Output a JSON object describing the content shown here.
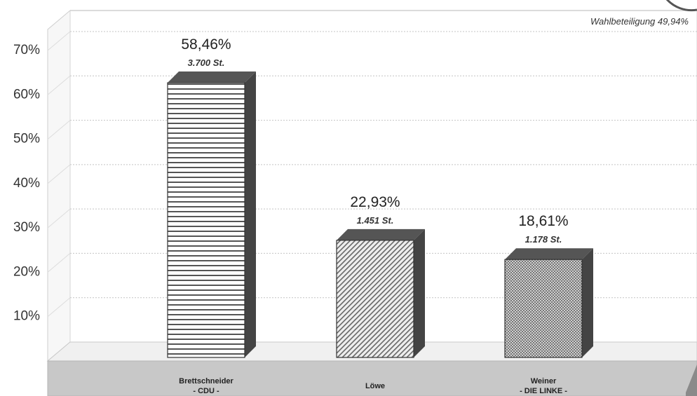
{
  "chart_data": {
    "type": "bar",
    "title": "",
    "annotation": "Wahlbeteiligung 49,94%",
    "y_ticks": [
      "10%",
      "20%",
      "30%",
      "40%",
      "50%",
      "60%",
      "70%"
    ],
    "ylim": [
      0,
      70
    ],
    "grid": true,
    "categories": [
      {
        "line1": "Brettschneider",
        "line2": "- CDU -"
      },
      {
        "line1": "Löwe",
        "line2": ""
      },
      {
        "line1": "Weiner",
        "line2": "- DIE LINKE -"
      }
    ],
    "values": [
      58.46,
      22.93,
      18.61
    ],
    "value_labels": [
      "58,46%",
      "22,93%",
      "18,61%"
    ],
    "vote_labels": [
      "3.700 St.",
      "1.451 St.",
      "1.178 St."
    ],
    "patterns": [
      "horizontal-stripes",
      "diagonal-hatch",
      "crosshatch"
    ]
  }
}
